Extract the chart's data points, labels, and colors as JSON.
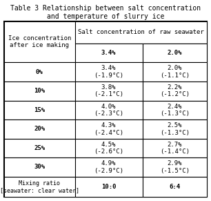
{
  "title_line1": "Table 3 Relationship between salt concentration",
  "title_line2": "and temperature of slurry ice",
  "col_header_span": "Salt concentration of raw seawater",
  "col_headers": [
    "3.4%",
    "2.0%"
  ],
  "row_header_label": "Ice concentration\nafter ice making",
  "rows": [
    {
      "label": "0%",
      "c1": "3.4%\n(-1.9°C)",
      "c2": "2.0%\n(-1.1°C)"
    },
    {
      "label": "10%",
      "c1": "3.8%\n(-2.1°C)",
      "c2": "2.2%\n(-1.2°C)"
    },
    {
      "label": "15%",
      "c1": "4.0%\n(-2.3°C)",
      "c2": "2.4%\n(-1.3°C)"
    },
    {
      "label": "20%",
      "c1": "4.3%\n(-2.4°C)",
      "c2": "2.5%\n(-1.3°C)"
    },
    {
      "label": "25%",
      "c1": "4.5%\n(-2.6°C)",
      "c2": "2.7%\n(-1.4°C)"
    },
    {
      "label": "30%",
      "c1": "4.9%\n(-2.9°C)",
      "c2": "2.9%\n(-1.5°C)"
    }
  ],
  "footer_label": "Mixing ratio\n[seawater: clear water]",
  "footer_c1": "10:0",
  "footer_c2": "6:4",
  "bg_color": "#ffffff",
  "title_fontsize": 7.0,
  "header_fontsize": 6.5,
  "cell_fontsize": 6.5,
  "footer_fontsize": 6.0
}
